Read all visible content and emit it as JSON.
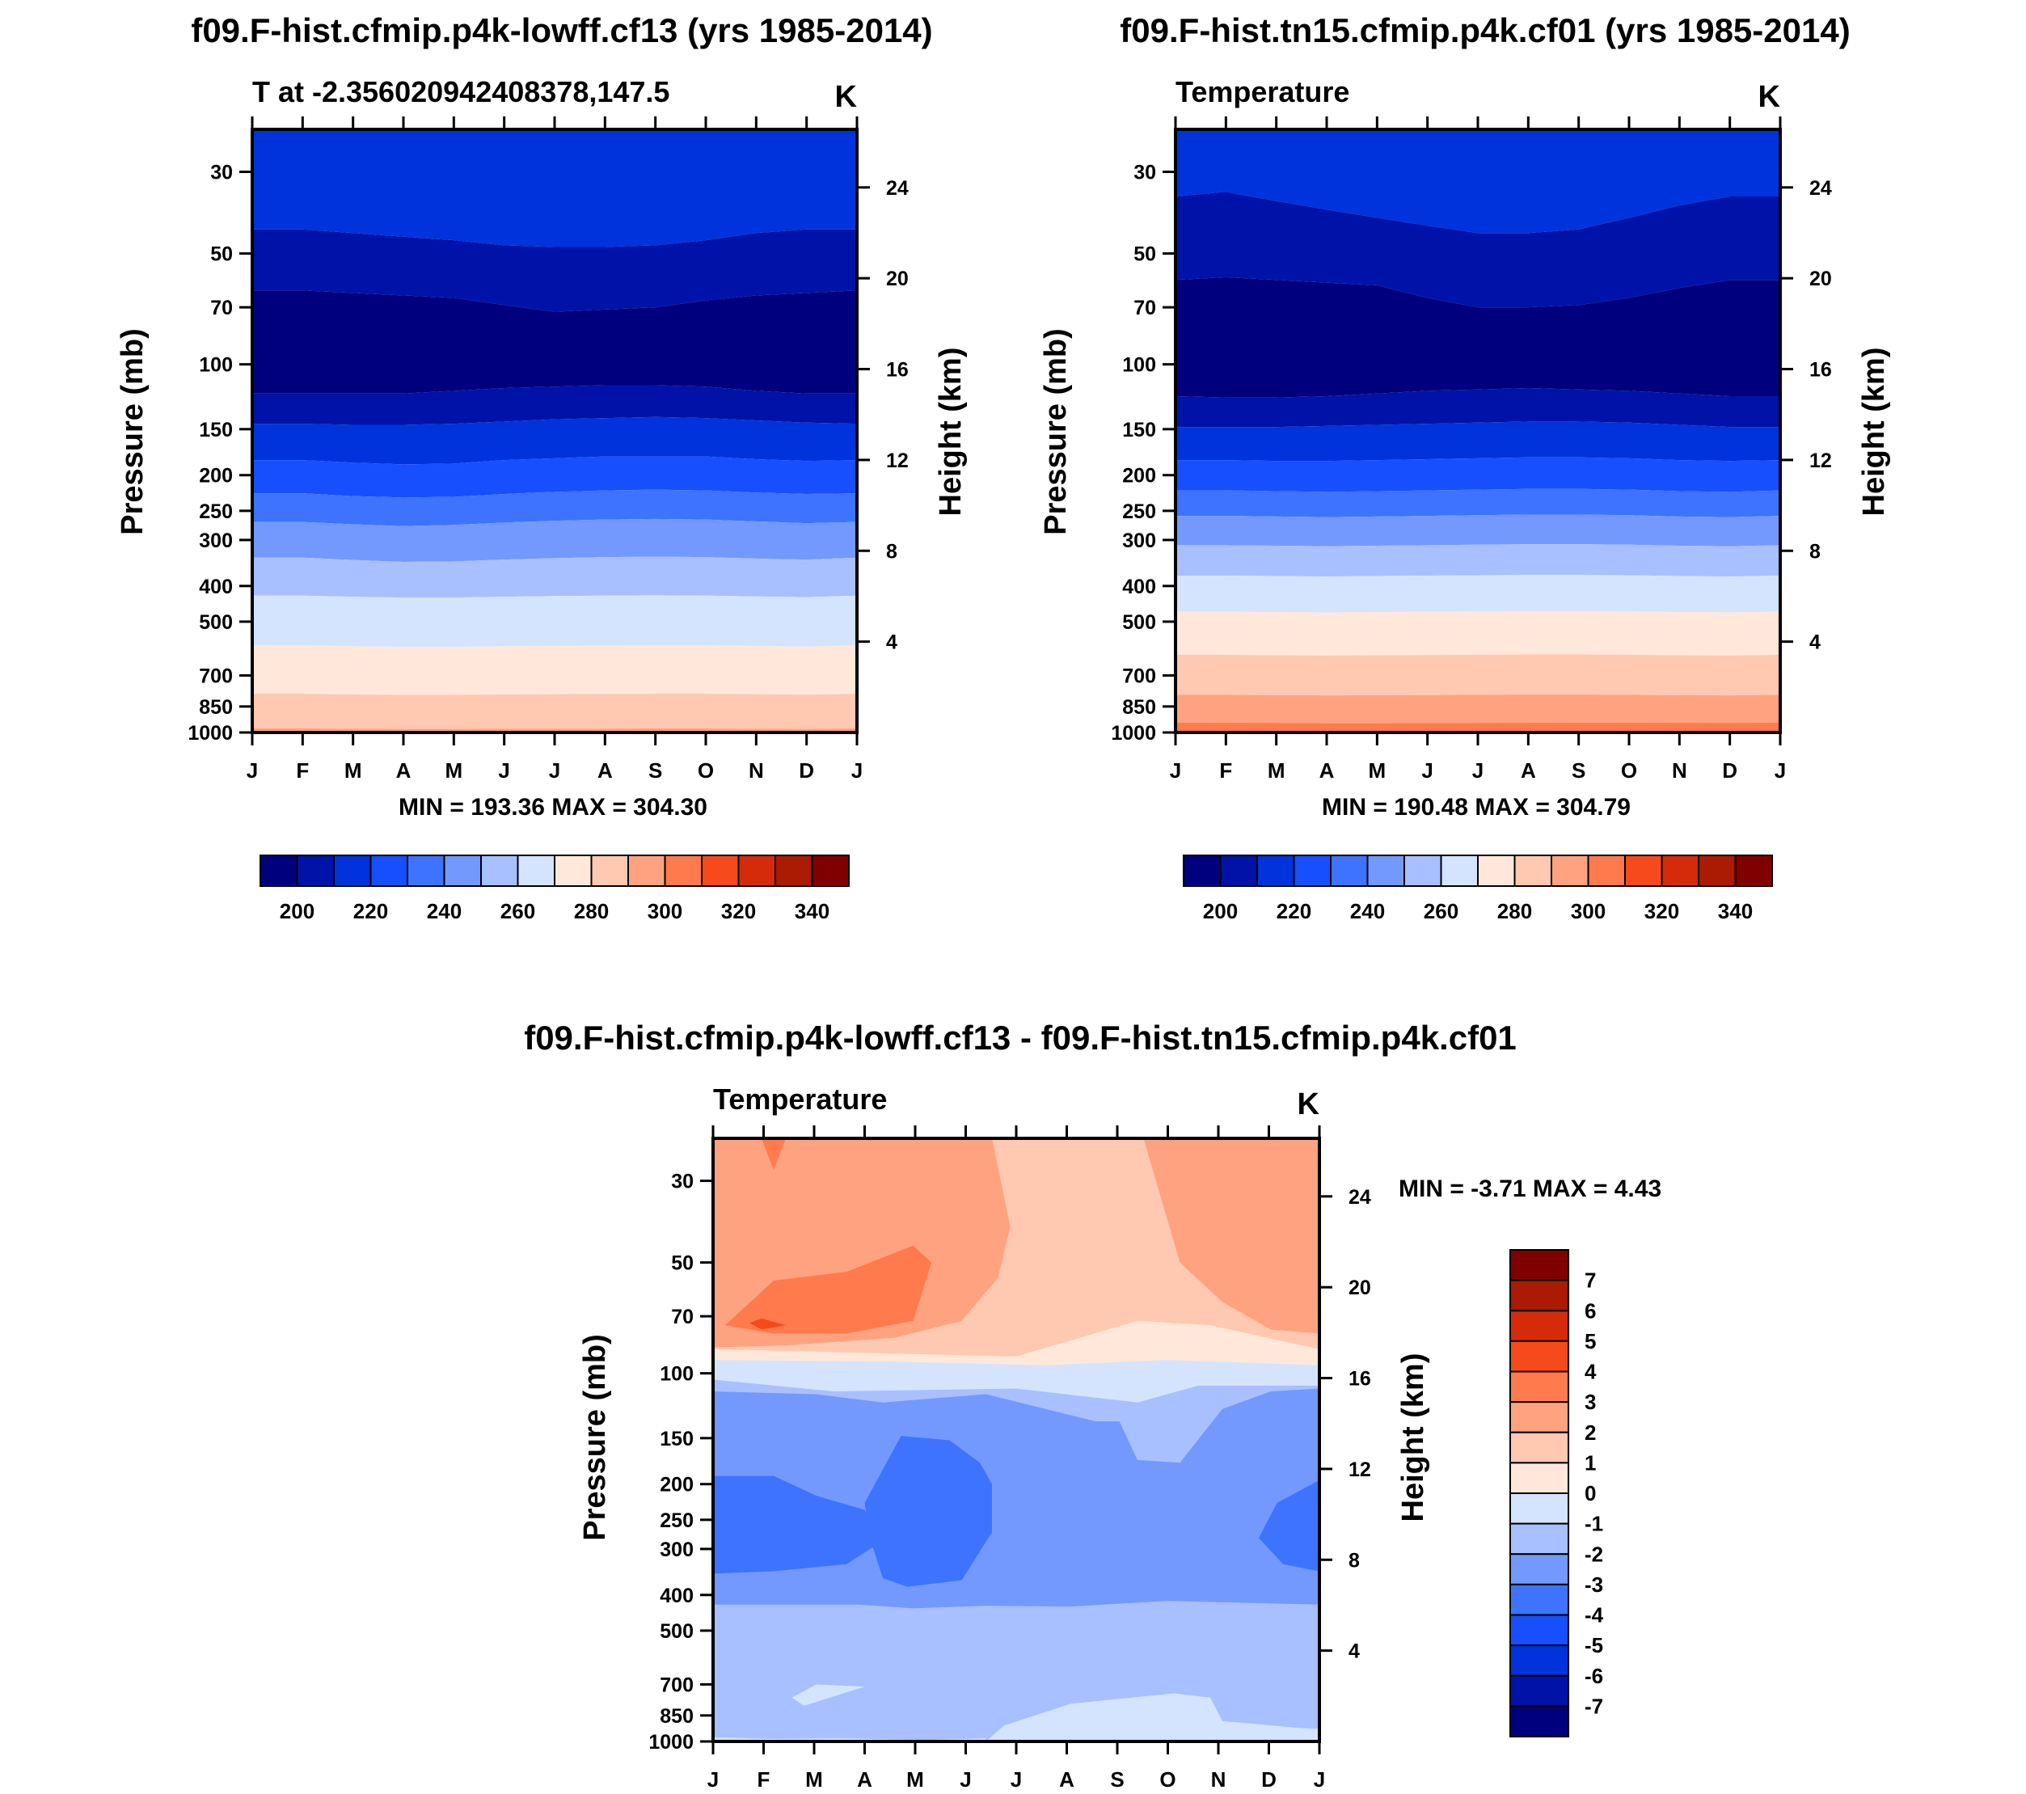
{
  "palette": {
    "temp": [
      "#00007f",
      "#0012a8",
      "#0033db",
      "#174fff",
      "#3d73ff",
      "#7399ff",
      "#a8c0ff",
      "#d4e4ff",
      "#ffe8d9",
      "#ffc8b0",
      "#ffa27f",
      "#ff7a4c",
      "#f74a1c",
      "#d62b0a",
      "#ab1a03",
      "#800000"
    ],
    "diff": [
      "#00007f",
      "#0012a8",
      "#0033db",
      "#174fff",
      "#3d73ff",
      "#7399ff",
      "#a8c0ff",
      "#d4e4ff",
      "#ffe8d9",
      "#ffc8b0",
      "#ffa27f",
      "#ff7a4c",
      "#f74a1c",
      "#d62b0a",
      "#ab1a03",
      "#800000"
    ]
  },
  "chart_data": [
    {
      "type": "heatmap",
      "title": "f09.F-hist.cfmip.p4k-lowff.cf13 (yrs 1985-2014)",
      "subtitle_left": "T at -2.356020942408378,147.5",
      "units": "K",
      "xlabel": "",
      "ylabel": "Pressure (mb)",
      "ylabel_right": "Height (km)",
      "x_ticks": [
        "J",
        "F",
        "M",
        "A",
        "M",
        "J",
        "J",
        "A",
        "S",
        "O",
        "N",
        "D",
        "J"
      ],
      "y_ticks": [
        30,
        50,
        70,
        100,
        150,
        200,
        250,
        300,
        400,
        500,
        700,
        850,
        1000
      ],
      "y_ticks_right": [
        24,
        20,
        16,
        12,
        8,
        4
      ],
      "ylim": [
        1000,
        23
      ],
      "stats": "MIN = 193.36 MAX = 304.30",
      "colorbar": {
        "levels": [
          190,
          200,
          210,
          220,
          230,
          240,
          250,
          260,
          270,
          280,
          290,
          300,
          310,
          320,
          330,
          340,
          350
        ],
        "labels": [
          "200",
          "220",
          "240",
          "260",
          "280",
          "300",
          "320",
          "340"
        ]
      },
      "contour_boundaries_mb": [
        {
          "level": 210,
          "p": [
            43,
            43,
            44,
            45,
            46,
            47.5,
            48,
            48,
            47.5,
            46,
            44,
            43,
            43
          ]
        },
        {
          "level": 200,
          "p": [
            63,
            63,
            64,
            65,
            66,
            69,
            72,
            71,
            70,
            67,
            65,
            64,
            63
          ]
        },
        {
          "level": 210,
          "p": [
            120,
            120,
            120,
            120,
            118,
            116,
            115,
            114,
            114,
            115,
            118,
            120,
            120
          ]
        },
        {
          "level": 220,
          "p": [
            145,
            145,
            146,
            146,
            145,
            143,
            141,
            140,
            139,
            140,
            142,
            144,
            145
          ]
        },
        {
          "level": 230,
          "p": [
            182,
            182,
            185,
            187,
            186,
            182,
            180,
            178,
            178,
            178,
            181,
            183,
            182
          ]
        },
        {
          "level": 240,
          "p": [
            224,
            224,
            228,
            230,
            229,
            225,
            222,
            220,
            219,
            220,
            223,
            225,
            224
          ]
        },
        {
          "level": 250,
          "p": [
            268,
            268,
            272,
            275,
            273,
            269,
            266,
            264,
            263,
            264,
            267,
            270,
            268
          ]
        },
        {
          "level": 260,
          "p": [
            335,
            335,
            340,
            344,
            343,
            339,
            336,
            334,
            333,
            334,
            337,
            339,
            335
          ]
        },
        {
          "level": 270,
          "p": [
            425,
            425,
            428,
            430,
            430,
            428,
            426,
            425,
            424,
            425,
            427,
            429,
            425
          ]
        },
        {
          "level": 280,
          "p": [
            580,
            580,
            583,
            585,
            585,
            583,
            582,
            581,
            580,
            580,
            582,
            584,
            580
          ]
        },
        {
          "level": 290,
          "p": [
            785,
            785,
            788,
            790,
            790,
            788,
            787,
            786,
            785,
            785,
            787,
            789,
            785
          ]
        },
        {
          "level": 300,
          "p": [
            975,
            975,
            977,
            978,
            978,
            977,
            977,
            976,
            975,
            975,
            977,
            978,
            975
          ]
        }
      ]
    },
    {
      "type": "heatmap",
      "title": "f09.F-hist.tn15.cfmip.p4k.cf01 (yrs 1985-2014)",
      "subtitle_left": "Temperature",
      "units": "K",
      "xlabel": "",
      "ylabel": "Pressure (mb)",
      "ylabel_right": "Height (km)",
      "x_ticks": [
        "J",
        "F",
        "M",
        "A",
        "M",
        "J",
        "J",
        "A",
        "S",
        "O",
        "N",
        "D",
        "J"
      ],
      "y_ticks": [
        30,
        50,
        70,
        100,
        150,
        200,
        250,
        300,
        400,
        500,
        700,
        850,
        1000
      ],
      "y_ticks_right": [
        24,
        20,
        16,
        12,
        8,
        4
      ],
      "ylim": [
        1000,
        23
      ],
      "stats": "MIN = 190.48 MAX = 304.79",
      "colorbar": {
        "levels": [
          190,
          200,
          210,
          220,
          230,
          240,
          250,
          260,
          270,
          280,
          290,
          300,
          310,
          320,
          330,
          340,
          350
        ],
        "labels": [
          "200",
          "220",
          "240",
          "260",
          "280",
          "300",
          "320",
          "340"
        ]
      },
      "contour_boundaries_mb": [
        {
          "level": 210,
          "p": [
            35,
            34,
            36,
            38,
            40,
            42,
            44,
            44,
            43,
            40,
            37,
            35,
            35
          ]
        },
        {
          "level": 200,
          "p": [
            59,
            58,
            59,
            60,
            61,
            66,
            70,
            70,
            69,
            66,
            62,
            59,
            59
          ]
        },
        {
          "level": 200,
          "p": [
            122,
            123,
            123,
            122,
            120,
            118,
            117,
            116,
            117,
            118,
            120,
            122,
            122
          ]
        },
        {
          "level": 220,
          "p": [
            148,
            148,
            148,
            147,
            146,
            145,
            144,
            143,
            143,
            144,
            146,
            148,
            148
          ]
        },
        {
          "level": 230,
          "p": [
            182,
            182,
            183,
            183,
            182,
            181,
            180,
            179,
            179,
            180,
            182,
            183,
            182
          ]
        },
        {
          "level": 240,
          "p": [
            220,
            220,
            221,
            222,
            221,
            220,
            219,
            218,
            218,
            219,
            221,
            222,
            220
          ]
        },
        {
          "level": 250,
          "p": [
            258,
            258,
            259,
            260,
            259,
            258,
            257,
            256,
            256,
            257,
            259,
            260,
            258
          ]
        },
        {
          "level": 260,
          "p": [
            310,
            310,
            311,
            312,
            311,
            310,
            309,
            308,
            308,
            309,
            311,
            312,
            310
          ]
        },
        {
          "level": 270,
          "p": [
            375,
            375,
            376,
            377,
            376,
            375,
            374,
            373,
            373,
            374,
            376,
            377,
            375
          ]
        },
        {
          "level": 280,
          "p": [
            470,
            470,
            471,
            472,
            471,
            470,
            469,
            468,
            468,
            469,
            471,
            472,
            470
          ]
        },
        {
          "level": 290,
          "p": [
            615,
            615,
            617,
            618,
            617,
            616,
            615,
            614,
            614,
            615,
            617,
            618,
            615
          ]
        },
        {
          "level": 300,
          "p": [
            790,
            790,
            792,
            793,
            792,
            791,
            790,
            789,
            789,
            790,
            792,
            793,
            790
          ]
        },
        {
          "level": 310,
          "p": [
            940,
            940,
            942,
            944,
            944,
            943,
            942,
            941,
            940,
            940,
            941,
            942,
            940
          ]
        }
      ]
    },
    {
      "type": "heatmap",
      "title": "f09.F-hist.cfmip.p4k-lowff.cf13 - f09.F-hist.tn15.cfmip.p4k.cf01",
      "subtitle_left": "Temperature",
      "units": "K",
      "xlabel": "",
      "ylabel": "Pressure (mb)",
      "ylabel_right": "Height (km)",
      "x_ticks": [
        "J",
        "F",
        "M",
        "A",
        "M",
        "J",
        "J",
        "A",
        "S",
        "O",
        "N",
        "D",
        "J"
      ],
      "y_ticks": [
        30,
        50,
        70,
        100,
        150,
        200,
        250,
        300,
        400,
        500,
        700,
        850,
        1000
      ],
      "y_ticks_right": [
        24,
        20,
        16,
        12,
        8,
        4
      ],
      "ylim": [
        1000,
        23
      ],
      "stats": "MIN =  -3.71 MAX =   4.43",
      "colorbar": {
        "levels": [
          -8,
          -7,
          -6,
          -5,
          -4,
          -3,
          -2,
          -1,
          0,
          1,
          2,
          3,
          4,
          5,
          6,
          7,
          8
        ],
        "labels": [
          "-7",
          "-6",
          "-5",
          "-4",
          "-3",
          "-2",
          "-1",
          "0",
          "1",
          "2",
          "3",
          "4",
          "5",
          "6",
          "7"
        ]
      },
      "contour_regions": [
        {
          "level": 2.5,
          "desc": "2 to 3 K warming in upper stratosphere, Jan-May and Oct-Jan"
        },
        {
          "level": 3.5,
          "desc": "3 to 4 K warming near 50-80 mb, Feb-May"
        },
        {
          "level": 1.5,
          "desc": "1 to 2 K warming, Jun-Sep upper levels"
        },
        {
          "level": -2.5,
          "desc": "-2 to -3 K cooling 110-400 mb"
        },
        {
          "level": -3.5,
          "desc": "-3 to -4 K cooling 200-380 mb, Mar-Jun and Dec"
        },
        {
          "level": -1.5,
          "desc": "-1 to -2 K cooling 430-950 mb"
        }
      ]
    }
  ]
}
